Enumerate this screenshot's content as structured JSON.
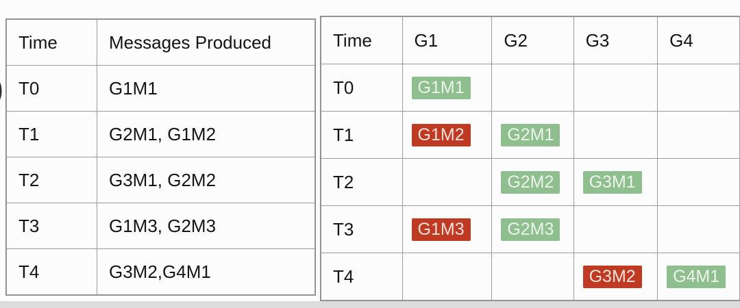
{
  "left_edge_fragment": ")",
  "colors": {
    "page_bg": "#fcfcfc",
    "text": "#141414",
    "border": "#9b9b9b",
    "outer_border": "#8a8a8a",
    "green_bg": "#8fbf8f",
    "green_text": "#ecf4ec",
    "red_bg": "#bf3a22",
    "red_text": "#f6e2dc",
    "bottom_strip": "#dcdcdc"
  },
  "left_table": {
    "headers": [
      "Time",
      "Messages Produced"
    ],
    "rows": [
      {
        "time": "T0",
        "messages": "G1M1"
      },
      {
        "time": "T1",
        "messages": "G2M1, G1M2"
      },
      {
        "time": "T2",
        "messages": "G3M1, G2M2"
      },
      {
        "time": "T3",
        "messages": "G1M3, G2M3"
      },
      {
        "time": "T4",
        "messages": "G3M2,G4M1"
      }
    ]
  },
  "right_table": {
    "headers": [
      "Time",
      "G1",
      "G2",
      "G3",
      "G4"
    ],
    "rows": [
      {
        "time": "T0",
        "cols": {
          "G1": {
            "label": "G1M1",
            "color": "green"
          },
          "G2": null,
          "G3": null,
          "G4": null
        }
      },
      {
        "time": "T1",
        "cols": {
          "G1": {
            "label": "G1M2",
            "color": "red"
          },
          "G2": {
            "label": "G2M1",
            "color": "green"
          },
          "G3": null,
          "G4": null
        }
      },
      {
        "time": "T2",
        "cols": {
          "G1": null,
          "G2": {
            "label": "G2M2",
            "color": "green"
          },
          "G3": {
            "label": "G3M1",
            "color": "green"
          },
          "G4": null
        }
      },
      {
        "time": "T3",
        "cols": {
          "G1": {
            "label": "G1M3",
            "color": "red"
          },
          "G2": {
            "label": "G2M3",
            "color": "green"
          },
          "G3": null,
          "G4": null
        }
      },
      {
        "time": "T4",
        "cols": {
          "G1": null,
          "G2": null,
          "G3": {
            "label": "G3M2",
            "color": "red"
          },
          "G4": {
            "label": "G4M1",
            "color": "green"
          }
        }
      }
    ]
  }
}
